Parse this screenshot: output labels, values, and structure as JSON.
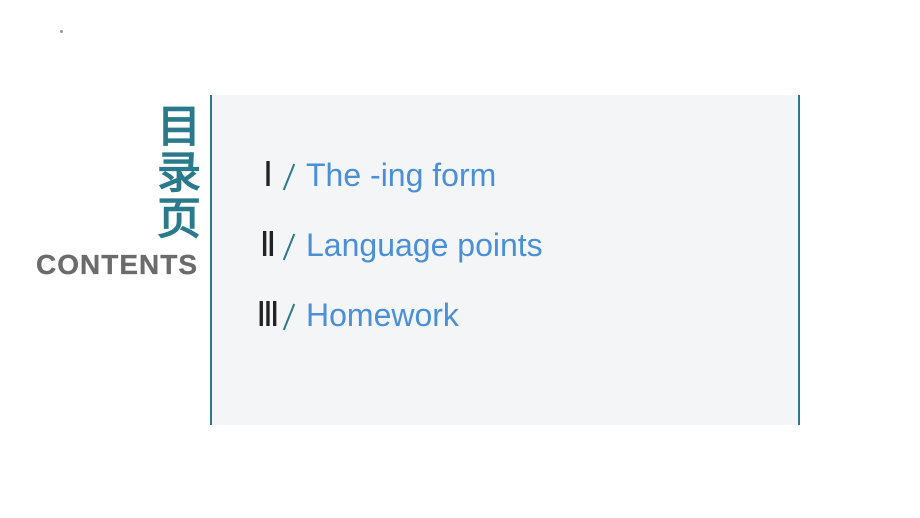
{
  "header": {
    "cn_title": "目录页",
    "en_title": "CONTENTS"
  },
  "items": [
    {
      "numeral": "Ⅰ",
      "label": "The -ing form"
    },
    {
      "numeral": "Ⅱ",
      "label": "Language points"
    },
    {
      "numeral": "Ⅲ",
      "label": "Homework"
    }
  ],
  "style": {
    "accent_color": "#2a7a8c",
    "link_color": "#4a8fd8",
    "subtitle_color": "#6b6b6b",
    "numeral_color": "#222222",
    "panel_bg": "#f4f5f6",
    "page_bg": "#ffffff",
    "cn_fontsize": 44,
    "en_fontsize": 28,
    "numeral_fontsize": 34,
    "label_fontsize": 32
  }
}
